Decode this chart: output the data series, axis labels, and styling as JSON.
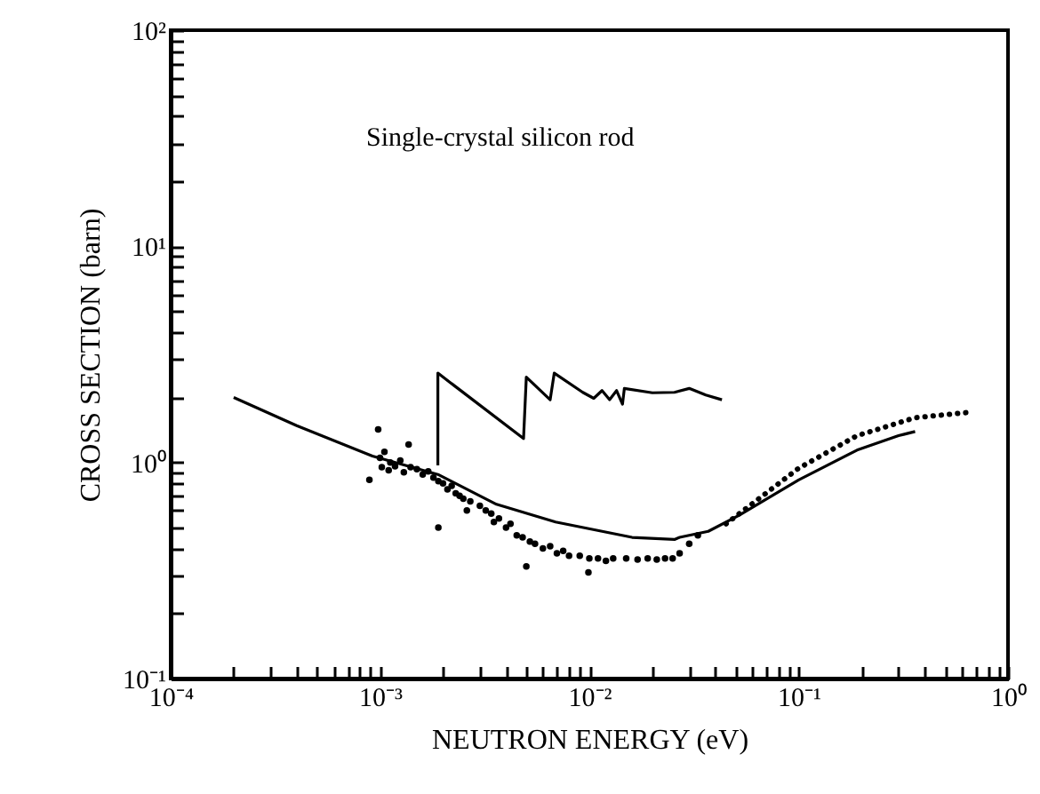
{
  "chart_data": {
    "type": "line",
    "xlabel": "NEUTRON ENERGY (eV)",
    "ylabel": "CROSS SECTION (barn)",
    "annotations": [
      "Single-crystal silicon rod"
    ],
    "log": "xy",
    "grid": false,
    "xlim": [
      0.0001,
      1
    ],
    "ylim": [
      0.1,
      100
    ],
    "xticks": [
      {
        "value": 0.0001,
        "label": "10⁻⁴"
      },
      {
        "value": 0.0002,
        "label": null
      },
      {
        "value": 0.0003,
        "label": null
      },
      {
        "value": 0.0004,
        "label": null
      },
      {
        "value": 0.0005,
        "label": null
      },
      {
        "value": 0.0006,
        "label": null
      },
      {
        "value": 0.0007,
        "label": null
      },
      {
        "value": 0.0008,
        "label": null
      },
      {
        "value": 0.0009,
        "label": null
      },
      {
        "value": 0.001,
        "label": "10⁻³"
      },
      {
        "value": 0.002,
        "label": null
      },
      {
        "value": 0.003,
        "label": null
      },
      {
        "value": 0.004,
        "label": null
      },
      {
        "value": 0.005,
        "label": null
      },
      {
        "value": 0.006,
        "label": null
      },
      {
        "value": 0.007,
        "label": null
      },
      {
        "value": 0.008,
        "label": null
      },
      {
        "value": 0.009,
        "label": null
      },
      {
        "value": 0.01,
        "label": "10⁻²"
      },
      {
        "value": 0.02,
        "label": null
      },
      {
        "value": 0.03,
        "label": null
      },
      {
        "value": 0.04,
        "label": null
      },
      {
        "value": 0.05,
        "label": null
      },
      {
        "value": 0.06,
        "label": null
      },
      {
        "value": 0.07,
        "label": null
      },
      {
        "value": 0.08,
        "label": null
      },
      {
        "value": 0.09,
        "label": null
      },
      {
        "value": 0.1,
        "label": "10⁻¹"
      },
      {
        "value": 0.2,
        "label": null
      },
      {
        "value": 0.3,
        "label": null
      },
      {
        "value": 0.4,
        "label": null
      },
      {
        "value": 0.5,
        "label": null
      },
      {
        "value": 0.6,
        "label": null
      },
      {
        "value": 0.7,
        "label": null
      },
      {
        "value": 0.8,
        "label": null
      },
      {
        "value": 0.9,
        "label": null
      },
      {
        "value": 1,
        "label": "10⁰"
      }
    ],
    "yticks": [
      {
        "value": 0.1,
        "label": "10⁻¹"
      },
      {
        "value": 0.2,
        "label": null
      },
      {
        "value": 0.3,
        "label": null
      },
      {
        "value": 0.4,
        "label": null
      },
      {
        "value": 0.5,
        "label": null
      },
      {
        "value": 0.6,
        "label": null
      },
      {
        "value": 0.7,
        "label": null
      },
      {
        "value": 0.8,
        "label": null
      },
      {
        "value": 0.9,
        "label": null
      },
      {
        "value": 1,
        "label": "10⁰"
      },
      {
        "value": 2,
        "label": null
      },
      {
        "value": 3,
        "label": null
      },
      {
        "value": 4,
        "label": null
      },
      {
        "value": 5,
        "label": null
      },
      {
        "value": 6,
        "label": null
      },
      {
        "value": 7,
        "label": null
      },
      {
        "value": 8,
        "label": null
      },
      {
        "value": 9,
        "label": null
      },
      {
        "value": 10,
        "label": "10¹"
      },
      {
        "value": 20,
        "label": null
      },
      {
        "value": 30,
        "label": null
      },
      {
        "value": 40,
        "label": null
      },
      {
        "value": 50,
        "label": null
      },
      {
        "value": 60,
        "label": null
      },
      {
        "value": 70,
        "label": null
      },
      {
        "value": 80,
        "label": null
      },
      {
        "value": 90,
        "label": null
      },
      {
        "value": 100,
        "label": "10²"
      }
    ],
    "series": [
      {
        "type": "line",
        "color": "#000000",
        "x": [
          0.0002,
          0.0004,
          0.00092,
          0.00189,
          0.0036,
          0.0069,
          0.016,
          0.0255,
          0.027,
          0.037,
          0.052,
          0.1,
          0.19,
          0.3,
          0.36
        ],
        "values": [
          2.0,
          1.48,
          1.07,
          0.88,
          0.64,
          0.53,
          0.45,
          0.44,
          0.45,
          0.48,
          0.57,
          0.83,
          1.14,
          1.33,
          1.39
        ]
      },
      {
        "type": "line",
        "color": "#000000",
        "x": [
          0.00189,
          0.00189,
          0.00485,
          0.005,
          0.0065,
          0.0068,
          0.0093,
          0.0105,
          0.0115,
          0.0125,
          0.0135,
          0.0144,
          0.0147,
          0.02,
          0.0255,
          0.03,
          0.036,
          0.043
        ],
        "values": [
          0.97,
          2.59,
          1.29,
          2.48,
          1.95,
          2.59,
          2.11,
          1.98,
          2.15,
          1.95,
          2.15,
          1.86,
          2.2,
          2.1,
          2.11,
          2.2,
          2.05,
          1.95
        ]
      },
      {
        "type": "scatter",
        "color": "#000000",
        "marker": "circle",
        "x": [
          0.00089,
          0.00098,
          0.001,
          0.00102,
          0.00105,
          0.0011,
          0.00112,
          0.00118,
          0.00125,
          0.0013,
          0.00137,
          0.0014,
          0.0015,
          0.0016,
          0.0017,
          0.0018,
          0.0019,
          0.0019,
          0.002,
          0.0021,
          0.0022,
          0.0023,
          0.0024,
          0.0025,
          0.0026,
          0.0027,
          0.003,
          0.0032,
          0.0034,
          0.0035,
          0.0037,
          0.004,
          0.0042,
          0.0045,
          0.0048,
          0.005,
          0.0052,
          0.0055,
          0.006,
          0.0065,
          0.007,
          0.0075,
          0.008,
          0.009,
          0.0099,
          0.01,
          0.011,
          0.012,
          0.013,
          0.015,
          0.017,
          0.019,
          0.021,
          0.023,
          0.025,
          0.027,
          0.03,
          0.033
        ],
        "values": [
          0.83,
          1.42,
          1.05,
          0.95,
          1.12,
          0.92,
          1.0,
          0.96,
          1.02,
          0.9,
          1.21,
          0.95,
          0.93,
          0.88,
          0.91,
          0.85,
          0.82,
          0.5,
          0.8,
          0.75,
          0.78,
          0.72,
          0.7,
          0.68,
          0.6,
          0.66,
          0.63,
          0.6,
          0.58,
          0.53,
          0.55,
          0.5,
          0.52,
          0.46,
          0.45,
          0.33,
          0.43,
          0.42,
          0.4,
          0.41,
          0.38,
          0.39,
          0.37,
          0.37,
          0.31,
          0.36,
          0.36,
          0.35,
          0.36,
          0.36,
          0.355,
          0.36,
          0.355,
          0.36,
          0.36,
          0.38,
          0.42,
          0.46
        ]
      },
      {
        "type": "line",
        "color": "#000000",
        "line_style": "dotted",
        "x": [
          0.045,
          0.1,
          0.19,
          0.36,
          0.67
        ],
        "values": [
          0.52,
          0.94,
          1.33,
          1.61,
          1.71
        ]
      }
    ]
  }
}
